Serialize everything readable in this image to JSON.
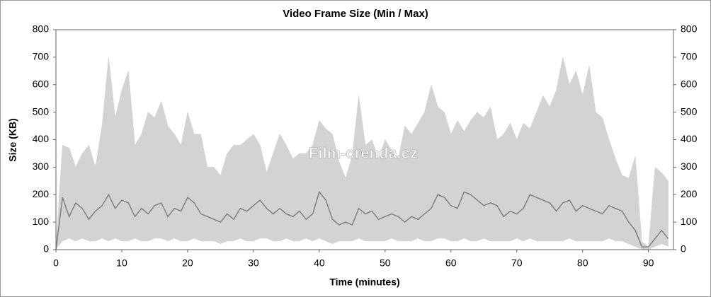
{
  "chart_data": {
    "type": "area",
    "title": "Video Frame Size (Min / Max)",
    "x_label": "Time (minutes)",
    "y_label": "Size (KB)",
    "watermark": "Film-crenda.cz",
    "x": [
      0,
      1,
      2,
      3,
      4,
      5,
      6,
      7,
      8,
      9,
      10,
      11,
      12,
      13,
      14,
      15,
      16,
      17,
      18,
      19,
      20,
      21,
      22,
      23,
      24,
      25,
      26,
      27,
      28,
      29,
      30,
      31,
      32,
      33,
      34,
      35,
      36,
      37,
      38,
      39,
      40,
      41,
      42,
      43,
      44,
      45,
      46,
      47,
      48,
      49,
      50,
      51,
      52,
      53,
      54,
      55,
      56,
      57,
      58,
      59,
      60,
      61,
      62,
      63,
      64,
      65,
      66,
      67,
      68,
      69,
      70,
      71,
      72,
      73,
      74,
      75,
      76,
      77,
      78,
      79,
      80,
      81,
      82,
      83,
      84,
      85,
      86,
      87,
      88,
      89,
      90,
      91,
      92,
      93
    ],
    "series": [
      {
        "color": "#d3d3d3",
        "fill": true,
        "values": [
          20,
          380,
          370,
          300,
          350,
          380,
          300,
          450,
          700,
          480,
          580,
          650,
          380,
          420,
          500,
          480,
          540,
          450,
          420,
          380,
          500,
          420,
          420,
          300,
          300,
          270,
          350,
          380,
          380,
          400,
          420,
          380,
          280,
          350,
          420,
          380,
          330,
          350,
          350,
          380,
          470,
          440,
          420,
          320,
          260,
          340,
          560,
          380,
          400,
          330,
          400,
          360,
          330,
          450,
          420,
          460,
          500,
          600,
          520,
          500,
          420,
          470,
          430,
          470,
          500,
          480,
          520,
          400,
          420,
          460,
          400,
          460,
          440,
          500,
          560,
          520,
          580,
          700,
          600,
          650,
          560,
          670,
          500,
          480,
          400,
          330,
          270,
          260,
          340,
          30,
          10,
          300,
          280,
          250
        ]
      },
      {
        "color": "#ffffff",
        "fill": true,
        "values": [
          0,
          30,
          40,
          30,
          40,
          30,
          30,
          40,
          30,
          40,
          30,
          30,
          40,
          30,
          30,
          40,
          40,
          30,
          40,
          30,
          30,
          40,
          30,
          30,
          30,
          20,
          30,
          30,
          40,
          30,
          30,
          40,
          40,
          30,
          30,
          40,
          30,
          30,
          40,
          30,
          40,
          30,
          20,
          30,
          30,
          30,
          40,
          30,
          30,
          30,
          30,
          40,
          30,
          30,
          30,
          40,
          30,
          30,
          40,
          40,
          30,
          30,
          40,
          30,
          30,
          40,
          30,
          30,
          30,
          30,
          40,
          30,
          40,
          30,
          30,
          30,
          30,
          30,
          40,
          30,
          30,
          30,
          30,
          30,
          40,
          30,
          30,
          20,
          10,
          0,
          0,
          10,
          20,
          10
        ]
      },
      {
        "color": "#808080",
        "fill": false,
        "values": [
          0,
          190,
          120,
          170,
          150,
          110,
          140,
          160,
          200,
          150,
          180,
          170,
          120,
          150,
          130,
          160,
          170,
          120,
          150,
          140,
          190,
          170,
          130,
          120,
          110,
          100,
          130,
          110,
          150,
          140,
          160,
          180,
          150,
          130,
          150,
          130,
          120,
          140,
          110,
          130,
          210,
          180,
          110,
          90,
          100,
          90,
          150,
          130,
          140,
          110,
          120,
          130,
          120,
          100,
          120,
          110,
          130,
          150,
          200,
          190,
          160,
          150,
          210,
          200,
          180,
          160,
          170,
          160,
          120,
          140,
          130,
          150,
          200,
          190,
          180,
          170,
          140,
          170,
          180,
          140,
          160,
          150,
          140,
          130,
          160,
          150,
          140,
          100,
          70,
          10,
          10,
          40,
          70,
          40
        ]
      }
    ],
    "xlim": [
      0,
      93.8
    ],
    "xticks": [
      0,
      10,
      20,
      30,
      40,
      50,
      60,
      70,
      80,
      90
    ],
    "ylim": [
      0,
      800
    ],
    "yticks": [
      0,
      100,
      200,
      300,
      400,
      500,
      600,
      700,
      800
    ],
    "grid": false
  }
}
